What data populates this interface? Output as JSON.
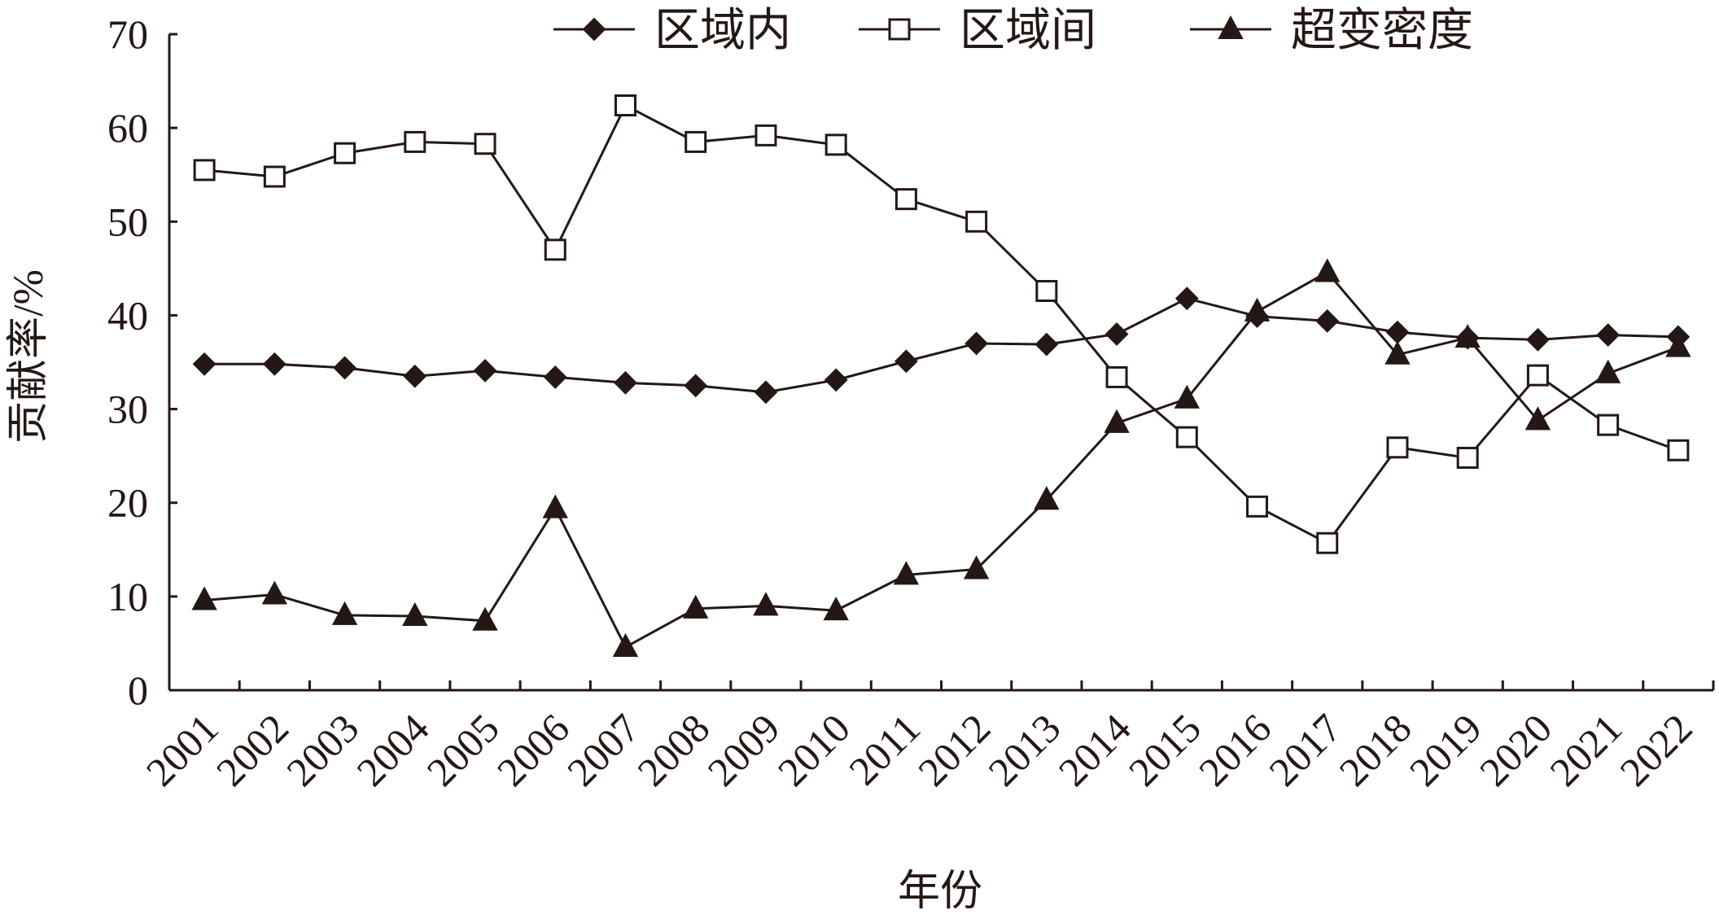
{
  "chart_data": {
    "type": "line",
    "title": "",
    "xlabel": "年份",
    "ylabel": "贡献率/%",
    "ylim": [
      0,
      70
    ],
    "yticks": [
      0,
      10,
      20,
      30,
      40,
      50,
      60,
      70
    ],
    "grid": false,
    "legend_position": "top",
    "categories": [
      "2001",
      "2002",
      "2003",
      "2004",
      "2005",
      "2006",
      "2007",
      "2008",
      "2009",
      "2010",
      "2011",
      "2012",
      "2013",
      "2014",
      "2015",
      "2016",
      "2017",
      "2018",
      "2019",
      "2020",
      "2021",
      "2022"
    ],
    "series": [
      {
        "name": "区域内",
        "marker": "diamond-filled",
        "color": "#231815",
        "values": [
          34.8,
          34.8,
          34.4,
          33.5,
          34.1,
          33.4,
          32.8,
          32.5,
          31.8,
          33.1,
          35.1,
          37.0,
          36.9,
          38.0,
          41.8,
          39.9,
          39.4,
          38.2,
          37.6,
          37.4,
          37.9,
          37.7
        ]
      },
      {
        "name": "区域间",
        "marker": "square-open",
        "color": "#231815",
        "values": [
          55.5,
          54.8,
          57.3,
          58.5,
          58.3,
          47.0,
          62.4,
          58.5,
          59.2,
          58.2,
          52.4,
          50.0,
          42.6,
          33.4,
          27.0,
          19.6,
          15.7,
          25.9,
          24.8,
          33.6,
          28.3,
          25.6
        ]
      },
      {
        "name": "超变密度",
        "marker": "triangle-filled",
        "color": "#231815",
        "values": [
          9.6,
          10.2,
          8.0,
          7.9,
          7.4,
          19.4,
          4.6,
          8.7,
          9.0,
          8.5,
          12.3,
          12.9,
          20.3,
          28.5,
          31.1,
          40.4,
          44.6,
          35.8,
          37.6,
          28.8,
          33.8,
          36.6
        ]
      }
    ]
  }
}
